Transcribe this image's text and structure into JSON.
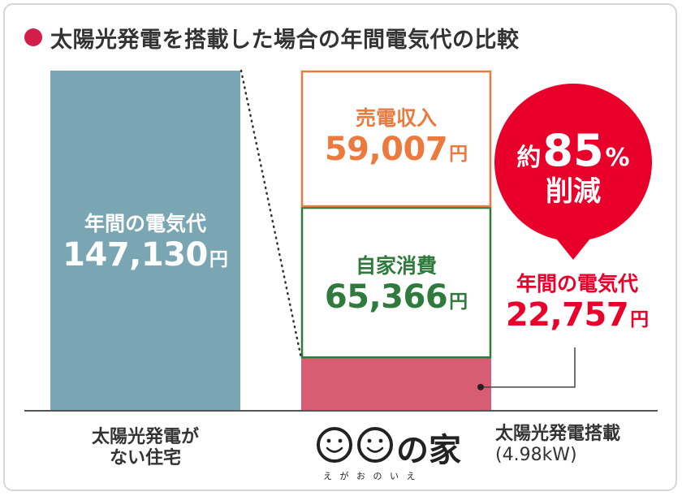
{
  "header": {
    "title": "太陽光発電を搭載した場合の年間電気代の比較"
  },
  "colors": {
    "accent": "#d31e4a",
    "bar_no_solar": "#7aa6b3",
    "sell": "#ec7a3f",
    "self": "#2f7a3c",
    "remaining": "#d75e72",
    "badge": "#e8002b",
    "text": "#333333"
  },
  "chart_data": {
    "type": "bar",
    "categories": [
      "太陽光発電がない住宅",
      "太陽光発電搭載(4.98kW)"
    ],
    "category_lines": [
      [
        "太陽光発電が",
        "ない住宅"
      ],
      [
        "太陽光発電搭載",
        "(4.98kW)"
      ]
    ],
    "unit": "円",
    "no_solar": {
      "label": "年間の電気代",
      "value": 147130,
      "value_text": "147,130"
    },
    "solar_stack": [
      {
        "key": "sell",
        "label": "売電収入",
        "value": 59007,
        "value_text": "59,007"
      },
      {
        "key": "self",
        "label": "自家消費",
        "value": 65366,
        "value_text": "65,366"
      },
      {
        "key": "remaining",
        "label": "年間の電気代",
        "value": 22757,
        "value_text": "22,757"
      }
    ],
    "reduction": {
      "prefix": "約",
      "value": 85,
      "unit": "%",
      "suffix": "削減"
    }
  },
  "logo": {
    "mark": "の家",
    "reading": "え が お の い え"
  }
}
